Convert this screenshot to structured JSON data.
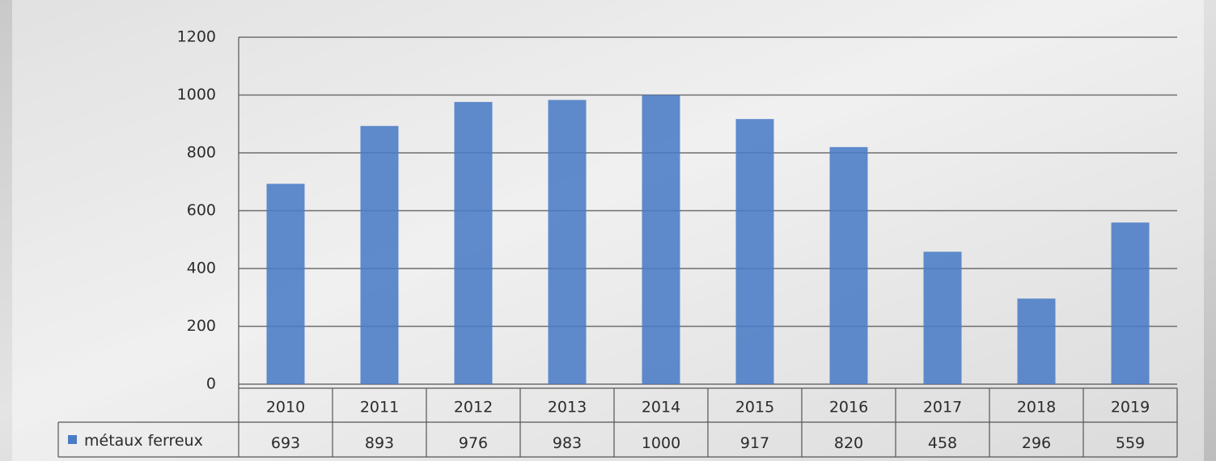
{
  "chart_data": {
    "type": "bar",
    "categories": [
      "2010",
      "2011",
      "2012",
      "2013",
      "2014",
      "2015",
      "2016",
      "2017",
      "2018",
      "2019"
    ],
    "series": [
      {
        "name": "métaux ferreux",
        "color": "#4a7cc6",
        "values": [
          693,
          893,
          976,
          983,
          1000,
          917,
          820,
          458,
          296,
          559
        ]
      }
    ],
    "ylim": [
      0,
      1200
    ],
    "yticks": [
      0,
      200,
      400,
      600,
      800,
      1000,
      1200
    ],
    "grid": true
  }
}
